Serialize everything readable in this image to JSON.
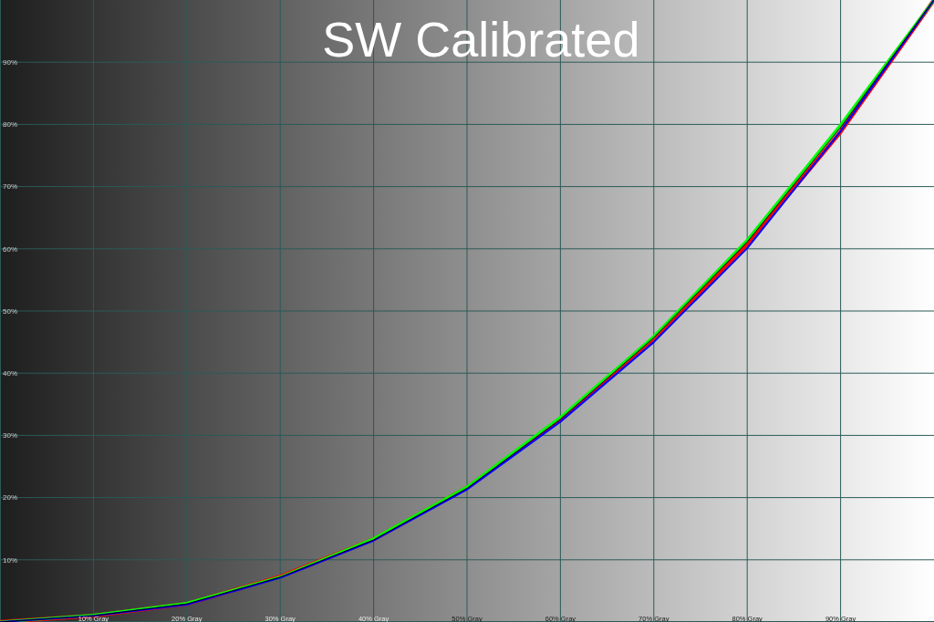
{
  "chart_data": {
    "type": "line",
    "title": "SW Calibrated",
    "x": [
      0,
      10,
      20,
      30,
      40,
      50,
      60,
      70,
      80,
      90,
      100
    ],
    "xlim": [
      0,
      100
    ],
    "ylim": [
      0,
      100
    ],
    "xticks": [
      {
        "value": 10,
        "label": "10% Gray"
      },
      {
        "value": 20,
        "label": "20% Gray"
      },
      {
        "value": 30,
        "label": "30% Gray"
      },
      {
        "value": 40,
        "label": "40% Gray"
      },
      {
        "value": 50,
        "label": "50% Gray"
      },
      {
        "value": 60,
        "label": "60% Gray"
      },
      {
        "value": 70,
        "label": "70% Gray"
      },
      {
        "value": 80,
        "label": "80% Gray"
      },
      {
        "value": 90,
        "label": "90% Gray"
      }
    ],
    "yticks": [
      {
        "value": 10,
        "label": "10%"
      },
      {
        "value": 20,
        "label": "20%"
      },
      {
        "value": 30,
        "label": "30%"
      },
      {
        "value": 40,
        "label": "40%"
      },
      {
        "value": 50,
        "label": "50%"
      },
      {
        "value": 60,
        "label": "60%"
      },
      {
        "value": 70,
        "label": "70%"
      },
      {
        "value": 80,
        "label": "80%"
      },
      {
        "value": 90,
        "label": "90%"
      }
    ],
    "grid": true,
    "series": [
      {
        "color": "#ff0000",
        "values": [
          0,
          1.0,
          2.9,
          7.3,
          13.3,
          21.6,
          32.6,
          45.5,
          60.7,
          78.8,
          100
        ]
      },
      {
        "color": "#00ff00",
        "values": [
          0,
          1.1,
          3.0,
          7.2,
          13.4,
          21.7,
          32.9,
          45.9,
          61.4,
          79.9,
          100
        ]
      },
      {
        "color": "#0000ff",
        "values": [
          0,
          1.0,
          2.8,
          7.1,
          13.1,
          21.3,
          32.2,
          45.0,
          60.1,
          78.9,
          100
        ]
      },
      {
        "color": "#000000",
        "values": [
          0,
          1.0,
          2.9,
          7.2,
          13.2,
          21.5,
          32.6,
          45.7,
          61.1,
          79.5,
          100
        ]
      }
    ]
  }
}
